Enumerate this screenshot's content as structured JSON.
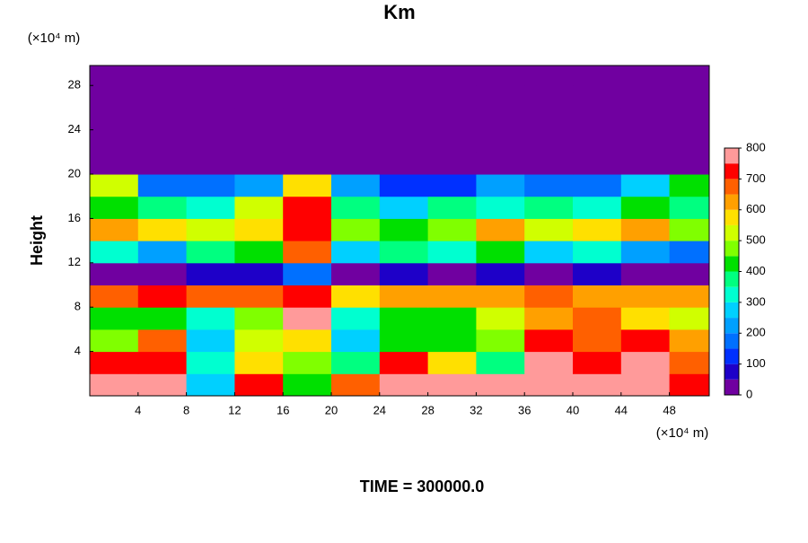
{
  "chart_data": {
    "type": "contour",
    "title": "Km",
    "y_unit_label": "(×10⁴ m)",
    "x_unit_label": "(×10⁴ m)",
    "ylabel": "Height",
    "footer": "TIME = 300000.0",
    "xlim": [
      0,
      51.3
    ],
    "ylim": [
      0,
      29.8
    ],
    "xticks": [
      4,
      8,
      12,
      16,
      20,
      24,
      28,
      32,
      36,
      40,
      44,
      48
    ],
    "yticks": [
      4,
      8,
      12,
      16,
      20,
      24,
      28
    ],
    "x": [
      2,
      6,
      10,
      14,
      18,
      22,
      26,
      30,
      34,
      38,
      42,
      46,
      50
    ],
    "y": [
      1,
      3,
      5,
      7,
      9,
      11,
      13,
      15,
      17,
      19,
      21,
      23,
      25,
      27,
      29
    ],
    "z": [
      [
        750,
        800,
        250,
        700,
        400,
        650,
        800,
        750,
        800,
        800,
        800,
        750,
        700
      ],
      [
        700,
        700,
        300,
        550,
        450,
        350,
        700,
        550,
        350,
        750,
        700,
        800,
        650
      ],
      [
        450,
        650,
        250,
        500,
        550,
        250,
        400,
        400,
        450,
        700,
        650,
        700,
        600
      ],
      [
        400,
        400,
        300,
        450,
        750,
        300,
        400,
        400,
        500,
        600,
        650,
        550,
        500
      ],
      [
        650,
        700,
        650,
        650,
        700,
        550,
        600,
        600,
        600,
        650,
        600,
        600,
        600
      ],
      [
        0,
        0,
        50,
        50,
        150,
        0,
        50,
        0,
        50,
        0,
        50,
        0,
        0
      ],
      [
        300,
        200,
        350,
        400,
        650,
        250,
        350,
        300,
        400,
        250,
        300,
        200,
        150
      ],
      [
        600,
        550,
        500,
        550,
        700,
        450,
        400,
        450,
        600,
        500,
        550,
        600,
        450
      ],
      [
        400,
        350,
        300,
        500,
        700,
        350,
        250,
        350,
        300,
        350,
        300,
        400,
        350
      ],
      [
        500,
        150,
        150,
        200,
        550,
        200,
        100,
        100,
        200,
        150,
        150,
        250,
        400
      ],
      [
        0,
        0,
        0,
        0,
        0,
        0,
        0,
        0,
        0,
        0,
        0,
        0,
        0
      ],
      [
        0,
        0,
        0,
        0,
        0,
        0,
        0,
        0,
        0,
        0,
        0,
        0,
        0
      ],
      [
        0,
        0,
        0,
        0,
        0,
        0,
        0,
        0,
        0,
        0,
        0,
        0,
        0
      ],
      [
        0,
        0,
        0,
        0,
        0,
        0,
        0,
        0,
        0,
        0,
        0,
        0,
        0
      ],
      [
        0,
        0,
        0,
        0,
        0,
        0,
        0,
        0,
        0,
        0,
        0,
        0,
        0
      ]
    ],
    "levels": [
      0,
      50,
      100,
      150,
      200,
      250,
      300,
      350,
      400,
      450,
      500,
      550,
      600,
      650,
      700,
      750,
      800
    ],
    "colors": [
      "#7000a0",
      "#1e00c8",
      "#0030ff",
      "#0070ff",
      "#00a0ff",
      "#00d0ff",
      "#00ffd0",
      "#00ff80",
      "#00e000",
      "#80ff00",
      "#d0ff00",
      "#ffe000",
      "#ffa000",
      "#ff6000",
      "#ff0000",
      "#ff9a9a"
    ],
    "cticks": [
      0,
      100,
      200,
      300,
      400,
      500,
      600,
      700,
      800
    ]
  }
}
